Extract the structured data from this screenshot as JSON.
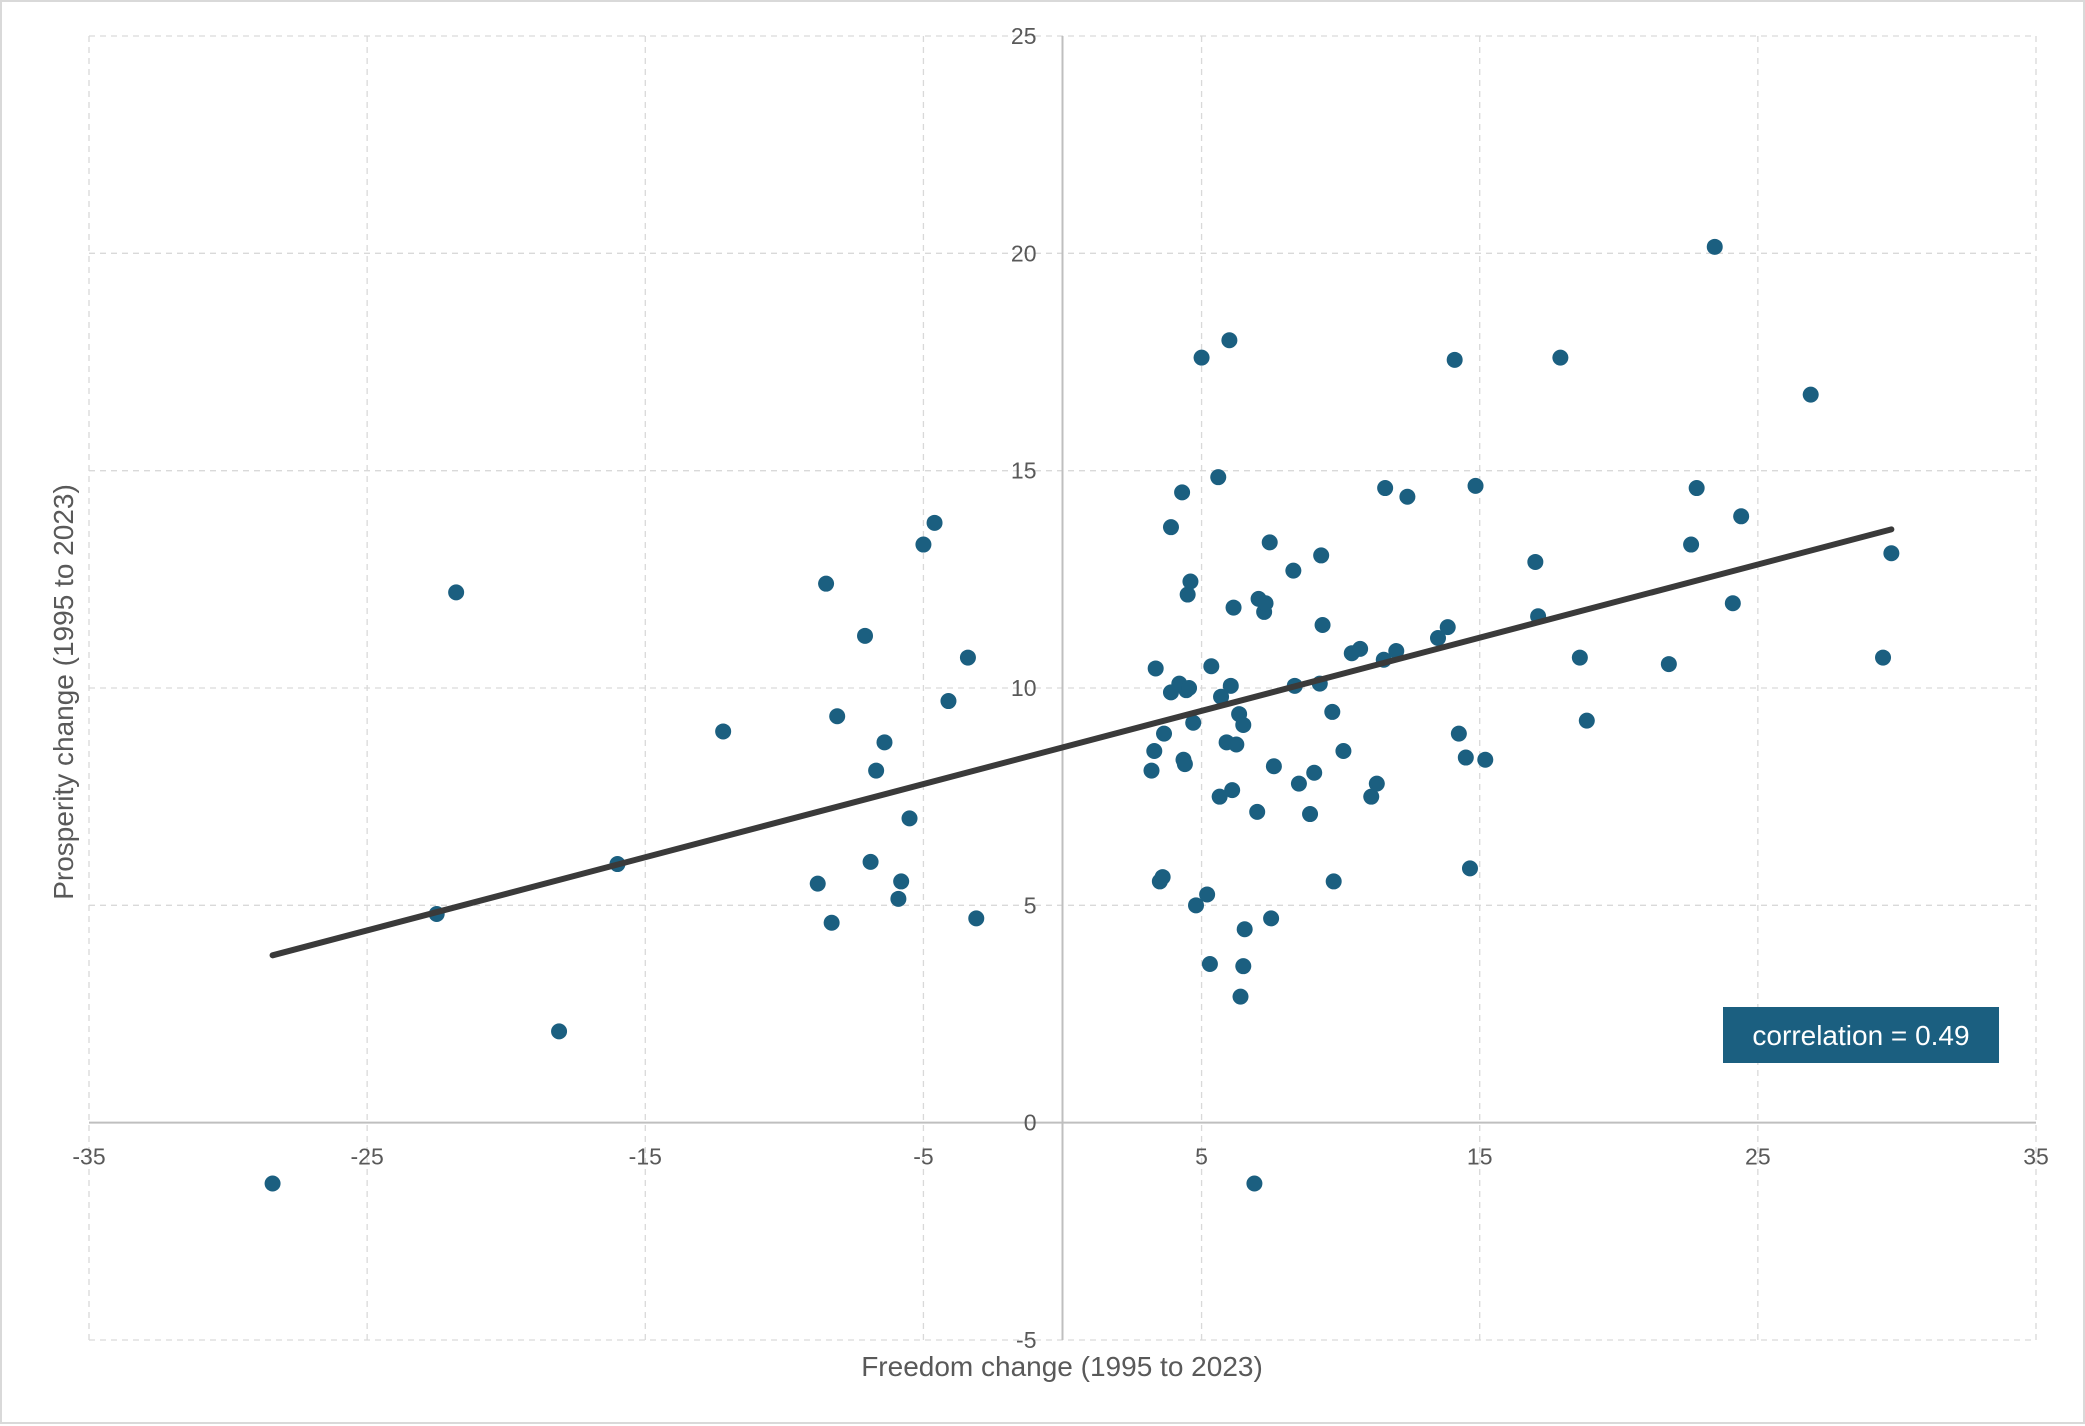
{
  "chart_data": {
    "type": "scatter",
    "title": "",
    "xlabel": "Freedom change (1995 to 2023)",
    "ylabel": "Prosperity change (1995 to 2023)",
    "xlim": [
      -35,
      35
    ],
    "ylim": [
      -5,
      25
    ],
    "x_ticks": [
      -35,
      -25,
      -15,
      -5,
      5,
      15,
      25,
      35
    ],
    "y_ticks": [
      -5,
      0,
      5,
      10,
      15,
      20,
      25
    ],
    "grid": true,
    "annotation": "correlation = 0.49",
    "colors": {
      "points": "#1b5f80",
      "trendline": "#3a3a3a",
      "annotation_bg": "#1b5f80",
      "grid": "#d9d9d9",
      "axis": "#bfbfbf"
    },
    "trendline": {
      "x": [
        -28.4,
        29.8
      ],
      "y": [
        3.85,
        13.65
      ]
    },
    "points": [
      {
        "x": -28.4,
        "y": -1.4
      },
      {
        "x": -22.5,
        "y": 4.8
      },
      {
        "x": -21.8,
        "y": 12.2
      },
      {
        "x": -18.1,
        "y": 2.1
      },
      {
        "x": -16.0,
        "y": 5.95
      },
      {
        "x": -12.2,
        "y": 9.0
      },
      {
        "x": -8.8,
        "y": 5.5
      },
      {
        "x": -8.5,
        "y": 12.4
      },
      {
        "x": -8.3,
        "y": 4.6
      },
      {
        "x": -8.1,
        "y": 9.35
      },
      {
        "x": -7.1,
        "y": 11.2
      },
      {
        "x": -6.9,
        "y": 6.0
      },
      {
        "x": -6.7,
        "y": 8.1
      },
      {
        "x": -6.4,
        "y": 8.75
      },
      {
        "x": -5.9,
        "y": 5.15
      },
      {
        "x": -5.8,
        "y": 5.55
      },
      {
        "x": -5.5,
        "y": 7.0
      },
      {
        "x": -5.0,
        "y": 13.3
      },
      {
        "x": -4.6,
        "y": 13.8
      },
      {
        "x": -4.1,
        "y": 9.7
      },
      {
        "x": -3.4,
        "y": 10.7
      },
      {
        "x": -3.1,
        "y": 4.7
      },
      {
        "x": 3.2,
        "y": 8.1
      },
      {
        "x": 3.3,
        "y": 8.55
      },
      {
        "x": 3.35,
        "y": 10.45
      },
      {
        "x": 3.5,
        "y": 5.55
      },
      {
        "x": 3.6,
        "y": 5.65
      },
      {
        "x": 3.65,
        "y": 8.95
      },
      {
        "x": 3.9,
        "y": 13.7
      },
      {
        "x": 3.9,
        "y": 9.9
      },
      {
        "x": 4.2,
        "y": 10.1
      },
      {
        "x": 4.3,
        "y": 14.5
      },
      {
        "x": 4.35,
        "y": 8.35
      },
      {
        "x": 4.4,
        "y": 8.25
      },
      {
        "x": 4.45,
        "y": 9.95
      },
      {
        "x": 4.5,
        "y": 12.15
      },
      {
        "x": 4.55,
        "y": 10.0
      },
      {
        "x": 4.6,
        "y": 12.45
      },
      {
        "x": 4.7,
        "y": 9.2
      },
      {
        "x": 4.8,
        "y": 5.0
      },
      {
        "x": 5.0,
        "y": 17.6
      },
      {
        "x": 5.2,
        "y": 5.25
      },
      {
        "x": 5.3,
        "y": 3.65
      },
      {
        "x": 5.35,
        "y": 10.5
      },
      {
        "x": 5.6,
        "y": 14.85
      },
      {
        "x": 5.65,
        "y": 7.5
      },
      {
        "x": 5.7,
        "y": 9.8
      },
      {
        "x": 5.9,
        "y": 8.75
      },
      {
        "x": 6.0,
        "y": 18.0
      },
      {
        "x": 6.05,
        "y": 10.05
      },
      {
        "x": 6.1,
        "y": 7.65
      },
      {
        "x": 6.15,
        "y": 11.85
      },
      {
        "x": 6.25,
        "y": 8.7
      },
      {
        "x": 6.35,
        "y": 9.4
      },
      {
        "x": 6.4,
        "y": 2.9
      },
      {
        "x": 6.5,
        "y": 9.15
      },
      {
        "x": 6.5,
        "y": 3.6
      },
      {
        "x": 6.55,
        "y": 4.45
      },
      {
        "x": 6.9,
        "y": -1.4
      },
      {
        "x": 7.0,
        "y": 7.15
      },
      {
        "x": 7.05,
        "y": 12.05
      },
      {
        "x": 7.25,
        "y": 11.75
      },
      {
        "x": 7.3,
        "y": 11.95
      },
      {
        "x": 7.45,
        "y": 13.35
      },
      {
        "x": 7.5,
        "y": 4.7
      },
      {
        "x": 7.6,
        "y": 8.2
      },
      {
        "x": 8.3,
        "y": 12.7
      },
      {
        "x": 8.35,
        "y": 10.05
      },
      {
        "x": 8.5,
        "y": 7.8
      },
      {
        "x": 8.9,
        "y": 7.1
      },
      {
        "x": 9.05,
        "y": 8.05
      },
      {
        "x": 9.25,
        "y": 10.1
      },
      {
        "x": 9.3,
        "y": 13.05
      },
      {
        "x": 9.35,
        "y": 11.45
      },
      {
        "x": 9.7,
        "y": 9.45
      },
      {
        "x": 9.75,
        "y": 5.55
      },
      {
        "x": 10.1,
        "y": 8.55
      },
      {
        "x": 10.4,
        "y": 10.8
      },
      {
        "x": 10.7,
        "y": 10.9
      },
      {
        "x": 11.1,
        "y": 7.5
      },
      {
        "x": 11.3,
        "y": 7.8
      },
      {
        "x": 11.55,
        "y": 10.65
      },
      {
        "x": 11.6,
        "y": 14.6
      },
      {
        "x": 12.0,
        "y": 10.85
      },
      {
        "x": 12.4,
        "y": 14.4
      },
      {
        "x": 13.5,
        "y": 11.15
      },
      {
        "x": 13.85,
        "y": 11.4
      },
      {
        "x": 14.1,
        "y": 17.55
      },
      {
        "x": 14.25,
        "y": 8.95
      },
      {
        "x": 14.5,
        "y": 8.4
      },
      {
        "x": 14.65,
        "y": 5.85
      },
      {
        "x": 14.85,
        "y": 14.65
      },
      {
        "x": 15.2,
        "y": 8.35
      },
      {
        "x": 17.0,
        "y": 12.9
      },
      {
        "x": 17.1,
        "y": 11.65
      },
      {
        "x": 17.9,
        "y": 17.6
      },
      {
        "x": 18.6,
        "y": 10.7
      },
      {
        "x": 18.85,
        "y": 9.25
      },
      {
        "x": 21.8,
        "y": 10.55
      },
      {
        "x": 22.6,
        "y": 13.3
      },
      {
        "x": 22.8,
        "y": 14.6
      },
      {
        "x": 23.45,
        "y": 20.15
      },
      {
        "x": 24.1,
        "y": 11.95
      },
      {
        "x": 24.4,
        "y": 13.95
      },
      {
        "x": 26.9,
        "y": 16.75
      },
      {
        "x": 29.5,
        "y": 10.7
      },
      {
        "x": 29.8,
        "y": 13.1
      }
    ]
  }
}
